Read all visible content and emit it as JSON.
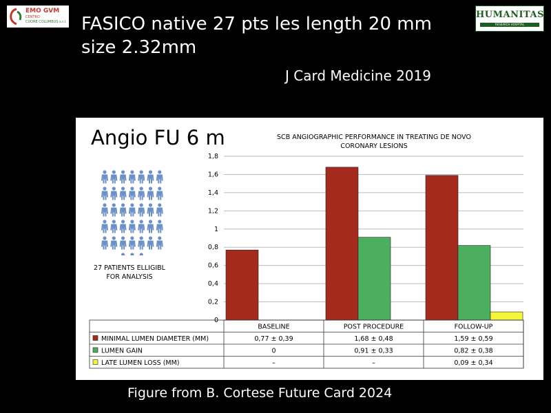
{
  "header": {
    "title_line1": "FASICO native 27 pts les length 20 mm",
    "title_line2": "size 2.32mm",
    "journal": "J Card Medicine 2019"
  },
  "logos": {
    "left": {
      "line1": "EMO GVM",
      "line2": "CENTRO",
      "line3": "CUORE COLUMBUS s.r.l."
    },
    "right": {
      "name": "HUMANITAS",
      "tagline": "RESEARCH HOSPITAL"
    }
  },
  "panel": {
    "heading": "Angio FU 6 m",
    "patients_line1": "27 PATIENTS ELLIGIBL",
    "patients_line2": "FOR ANALYSIS"
  },
  "chart_data": {
    "type": "bar",
    "title_line1": "SCB ANGIOGRAPHIC PERFORMANCE IN TREATING DE NOVO",
    "title_line2": "CORONARY LESIONS",
    "categories": [
      "BASELINE",
      "POST PROCEDURE",
      "FOLLOW-UP"
    ],
    "ylim": [
      0,
      1.8
    ],
    "yticks": [
      "0",
      "0,2",
      "0,4",
      "0,6",
      "0,8",
      "1",
      "1,2",
      "1,4",
      "1,6",
      "1,8"
    ],
    "grid": true,
    "series": [
      {
        "name": "MINIMAL LUMEN DIAMETER (MM)",
        "color": "#a52a1e",
        "values": [
          0.77,
          1.68,
          1.59
        ],
        "labels": [
          "0,77 ± 0,39",
          "1,68 ± 0,48",
          "1,59 ± 0,59"
        ]
      },
      {
        "name": "LUMEN GAIN",
        "color": "#4caf60",
        "values": [
          0,
          0.91,
          0.82
        ],
        "labels": [
          "0",
          "0,91 ± 0,33",
          "0,82 ± 0,38"
        ]
      },
      {
        "name": "LATE LUMEN LOSS (MM)",
        "color": "#f5f53a",
        "values": [
          null,
          null,
          0.09
        ],
        "labels": [
          "–",
          "–",
          "0,09 ± 0,34"
        ]
      }
    ]
  },
  "footer": {
    "caption": "Figure from B. Cortese Future Card 2024"
  }
}
